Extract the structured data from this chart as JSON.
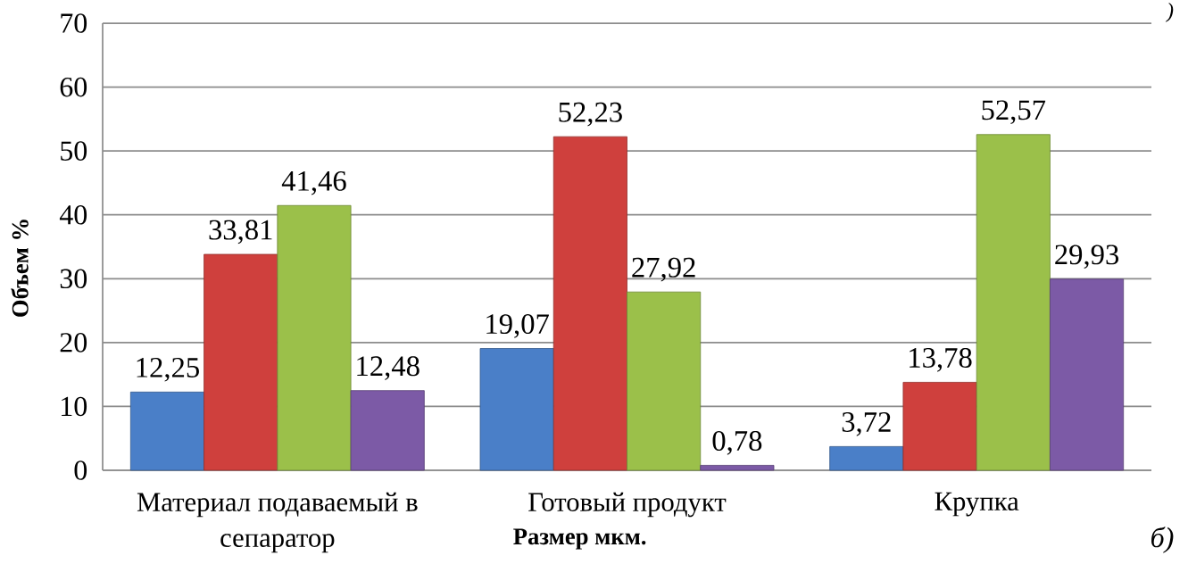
{
  "chart_data": {
    "type": "bar",
    "xlabel": "Размер мкм.",
    "ylabel": "Объем %",
    "annotations": [
      "б)",
      ")"
    ],
    "categories": [
      "Материал подаваемый в сепаратор",
      "Готовый продукт",
      "Крупка"
    ],
    "series": [
      {
        "color": "#4a7fc8",
        "values": [
          12.25,
          19.07,
          3.72
        ],
        "value_labels": [
          "12,25",
          "19,07",
          "3,72"
        ]
      },
      {
        "color": "#cf403d",
        "values": [
          33.81,
          52.23,
          13.78
        ],
        "value_labels": [
          "33,81",
          "52,23",
          "13,78"
        ]
      },
      {
        "color": "#9bc04a",
        "values": [
          41.46,
          27.92,
          52.57
        ],
        "value_labels": [
          "41,46",
          "27,92",
          "52,57"
        ]
      },
      {
        "color": "#7c5aa6",
        "values": [
          12.48,
          0.78,
          29.93
        ],
        "value_labels": [
          "12,48",
          "0,78",
          "29,93"
        ]
      }
    ],
    "ylim": [
      0,
      70
    ],
    "yticks": [
      0,
      10,
      20,
      30,
      40,
      50,
      60,
      70
    ],
    "grid": "y"
  }
}
